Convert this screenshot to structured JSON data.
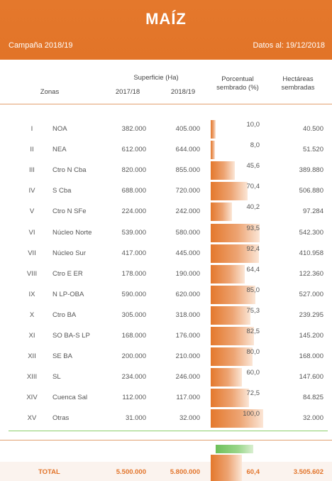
{
  "header": {
    "title": "MAÍZ",
    "campaign": "Campaña 2018/19",
    "data_date": "Datos al: 19/12/2018"
  },
  "columns": {
    "zonas": "Zonas",
    "superficie": "Superficie (Ha)",
    "year1": "2017/18",
    "year2": "2018/19",
    "porcentual": "Porcentual",
    "sembrado": "sembrado (%)",
    "hectareas": "Hectáreas",
    "hectareas2": "sembradas"
  },
  "rows": [
    {
      "num": "I",
      "zone": "NOA",
      "s1718": "382.000",
      "s1819": "405.000",
      "pct": "10,0",
      "pct_value": 10.0,
      "ha": "40.500"
    },
    {
      "num": "II",
      "zone": "NEA",
      "s1718": "612.000",
      "s1819": "644.000",
      "pct": "8,0",
      "pct_value": 8.0,
      "ha": "51.520"
    },
    {
      "num": "III",
      "zone": "Ctro N Cba",
      "s1718": "820.000",
      "s1819": "855.000",
      "pct": "45,6",
      "pct_value": 45.6,
      "ha": "389.880"
    },
    {
      "num": "IV",
      "zone": "S Cba",
      "s1718": "688.000",
      "s1819": "720.000",
      "pct": "70,4",
      "pct_value": 70.4,
      "ha": "506.880"
    },
    {
      "num": "V",
      "zone": "Ctro N SFe",
      "s1718": "224.000",
      "s1819": "242.000",
      "pct": "40,2",
      "pct_value": 40.2,
      "ha": "97.284"
    },
    {
      "num": "VI",
      "zone": "Núcleo Norte",
      "s1718": "539.000",
      "s1819": "580.000",
      "pct": "93,5",
      "pct_value": 93.5,
      "ha": "542.300"
    },
    {
      "num": "VII",
      "zone": "Núcleo Sur",
      "s1718": "417.000",
      "s1819": "445.000",
      "pct": "92,4",
      "pct_value": 92.4,
      "ha": "410.958"
    },
    {
      "num": "VIII",
      "zone": "Ctro E ER",
      "s1718": "178.000",
      "s1819": "190.000",
      "pct": "64,4",
      "pct_value": 64.4,
      "ha": "122.360"
    },
    {
      "num": "IX",
      "zone": "N LP-OBA",
      "s1718": "590.000",
      "s1819": "620.000",
      "pct": "85,0",
      "pct_value": 85.0,
      "ha": "527.000"
    },
    {
      "num": "X",
      "zone": "Ctro BA",
      "s1718": "305.000",
      "s1819": "318.000",
      "pct": "75,3",
      "pct_value": 75.3,
      "ha": "239.295"
    },
    {
      "num": "XI",
      "zone": "SO BA-S LP",
      "s1718": "168.000",
      "s1819": "176.000",
      "pct": "82,5",
      "pct_value": 82.5,
      "ha": "145.200"
    },
    {
      "num": "XII",
      "zone": "SE BA",
      "s1718": "200.000",
      "s1819": "210.000",
      "pct": "80,0",
      "pct_value": 80.0,
      "ha": "168.000"
    },
    {
      "num": "XIII",
      "zone": "SL",
      "s1718": "234.000",
      "s1819": "246.000",
      "pct": "60,0",
      "pct_value": 60.0,
      "ha": "147.600"
    },
    {
      "num": "XIV",
      "zone": "Cuenca Sal",
      "s1718": "112.000",
      "s1819": "117.000",
      "pct": "72,5",
      "pct_value": 72.5,
      "ha": "84.825"
    },
    {
      "num": "XV",
      "zone": "Otras",
      "s1718": "31.000",
      "s1819": "32.000",
      "pct": "100,0",
      "pct_value": 100.0,
      "ha": "32.000"
    }
  ],
  "total": {
    "label": "TOTAL",
    "s1718": "5.500.000",
    "s1819": "5.800.000",
    "pct": "60,4",
    "pct_value": 60.4,
    "ha": "3.505.602"
  },
  "colors": {
    "header_orange": "#e4782c",
    "accent_green": "#6dc05a"
  }
}
